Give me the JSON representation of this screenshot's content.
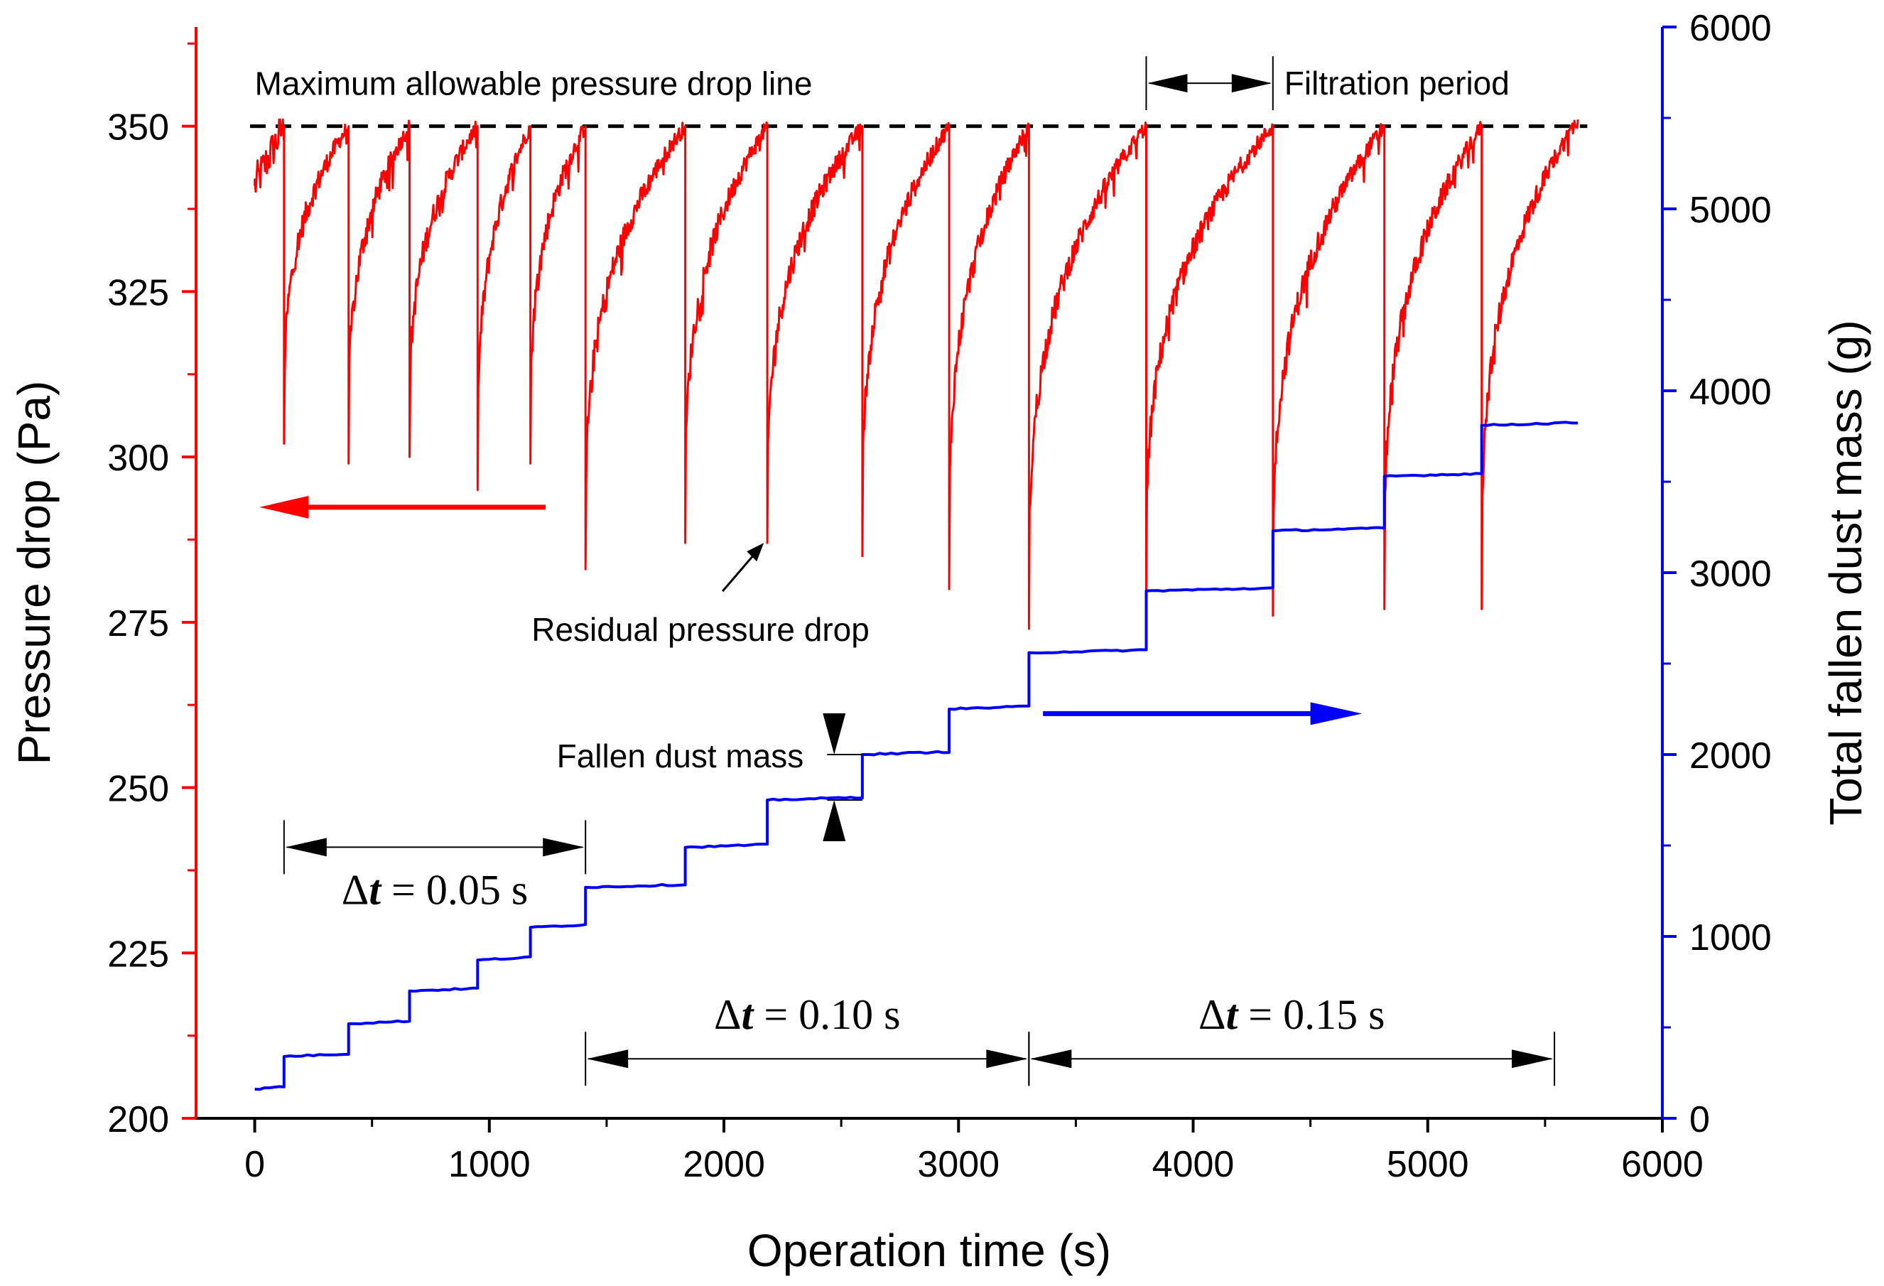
{
  "chart_data": {
    "type": "line",
    "x_axis": {
      "label": "Operation time (s)",
      "range": [
        -250,
        6000
      ],
      "ticks": [
        0,
        1000,
        2000,
        3000,
        4000,
        5000,
        6000
      ],
      "tick_labels": [
        "0",
        "1000",
        "2000",
        "3000",
        "4000",
        "5000",
        "6000"
      ]
    },
    "y_left": {
      "label": "Pressure drop (Pa)",
      "range": [
        200,
        365
      ],
      "ticks": [
        200,
        225,
        250,
        275,
        300,
        325,
        350
      ],
      "tick_labels": [
        "200",
        "225",
        "250",
        "275",
        "300",
        "325",
        "350"
      ],
      "color": "#ff0000"
    },
    "y_right": {
      "label": "Total fallen dust mass (g)",
      "range": [
        0,
        6000
      ],
      "ticks": [
        0,
        1000,
        2000,
        3000,
        4000,
        5000,
        6000
      ],
      "tick_labels": [
        "0",
        "1000",
        "2000",
        "3000",
        "4000",
        "5000",
        "6000"
      ],
      "color": "#0000ff"
    },
    "series": [
      {
        "name": "Pressure drop",
        "axis": "left",
        "color": "#ff0000",
        "start": {
          "t": 0,
          "p": 341
        },
        "cycles": [
          {
            "t_start": 125,
            "t_end": 400,
            "min": 302,
            "peak": 350
          },
          {
            "t_start": 400,
            "t_end": 660,
            "min": 299,
            "peak": 350
          },
          {
            "t_start": 660,
            "t_end": 950,
            "min": 300,
            "peak": 350
          },
          {
            "t_start": 950,
            "t_end": 1175,
            "min": 295,
            "peak": 350
          },
          {
            "t_start": 1175,
            "t_end": 1410,
            "min": 299,
            "peak": 350
          },
          {
            "t_start": 1410,
            "t_end": 1835,
            "min": 283,
            "peak": 350
          },
          {
            "t_start": 1835,
            "t_end": 2185,
            "min": 287,
            "peak": 350
          },
          {
            "t_start": 2185,
            "t_end": 2590,
            "min": 287,
            "peak": 350
          },
          {
            "t_start": 2590,
            "t_end": 2960,
            "min": 285,
            "peak": 350
          },
          {
            "t_start": 2960,
            "t_end": 3300,
            "min": 280,
            "peak": 350
          },
          {
            "t_start": 3300,
            "t_end": 3800,
            "min": 274,
            "peak": 350
          },
          {
            "t_start": 3800,
            "t_end": 4340,
            "min": 278,
            "peak": 350
          },
          {
            "t_start": 4340,
            "t_end": 4815,
            "min": 276,
            "peak": 350
          },
          {
            "t_start": 4815,
            "t_end": 5230,
            "min": 277,
            "peak": 350
          },
          {
            "t_start": 5230,
            "t_end": 5640,
            "min": 277,
            "peak": 351
          }
        ]
      },
      {
        "name": "Total fallen dust mass",
        "axis": "right",
        "color": "#0000ff",
        "t_end": 5640,
        "steps": [
          {
            "t": 0,
            "m": 160
          },
          {
            "t": 125,
            "m": 340
          },
          {
            "t": 400,
            "m": 520
          },
          {
            "t": 660,
            "m": 700
          },
          {
            "t": 950,
            "m": 870
          },
          {
            "t": 1175,
            "m": 1050
          },
          {
            "t": 1410,
            "m": 1270
          },
          {
            "t": 1835,
            "m": 1490
          },
          {
            "t": 2185,
            "m": 1750
          },
          {
            "t": 2590,
            "m": 2000
          },
          {
            "t": 2960,
            "m": 2250
          },
          {
            "t": 3300,
            "m": 2560
          },
          {
            "t": 3800,
            "m": 2900
          },
          {
            "t": 4340,
            "m": 3230
          },
          {
            "t": 4815,
            "m": 3530
          },
          {
            "t": 5230,
            "m": 3810
          }
        ]
      }
    ],
    "reference_line": {
      "label": "Maximum allowable pressure drop line",
      "value": 350,
      "axis": "left",
      "style": "dashed",
      "t_range": [
        -20,
        5680
      ]
    },
    "annotations": {
      "filtration_period": {
        "text": "Filtration period",
        "t1": 3800,
        "t2": 4340
      },
      "residual_pressure_drop": {
        "text": "Residual pressure drop",
        "arrow_to": {
          "t": 2170,
          "p": 287
        }
      },
      "fallen_dust_mass": {
        "text": "Fallen dust mass",
        "t": 2470,
        "m_low": 1750,
        "m_high": 2000
      },
      "intervals": [
        {
          "label": "Δt = 0.05 s",
          "delta": "Δ",
          "var": "t",
          "rest": " = 0.05 s",
          "t1": 125,
          "t2": 1410,
          "p": 241
        },
        {
          "label": "Δt = 0.10 s",
          "delta": "Δ",
          "var": "t",
          "rest": " = 0.10 s",
          "t1": 1410,
          "t2": 3300,
          "p": 209
        },
        {
          "label": "Δt = 0.15 s",
          "delta": "Δ",
          "var": "t",
          "rest": " = 0.15 s",
          "t1": 3300,
          "t2": 5540,
          "p": 209
        }
      ],
      "left_arrow_color": "#ff0000",
      "right_arrow_color": "#0000ff"
    }
  }
}
